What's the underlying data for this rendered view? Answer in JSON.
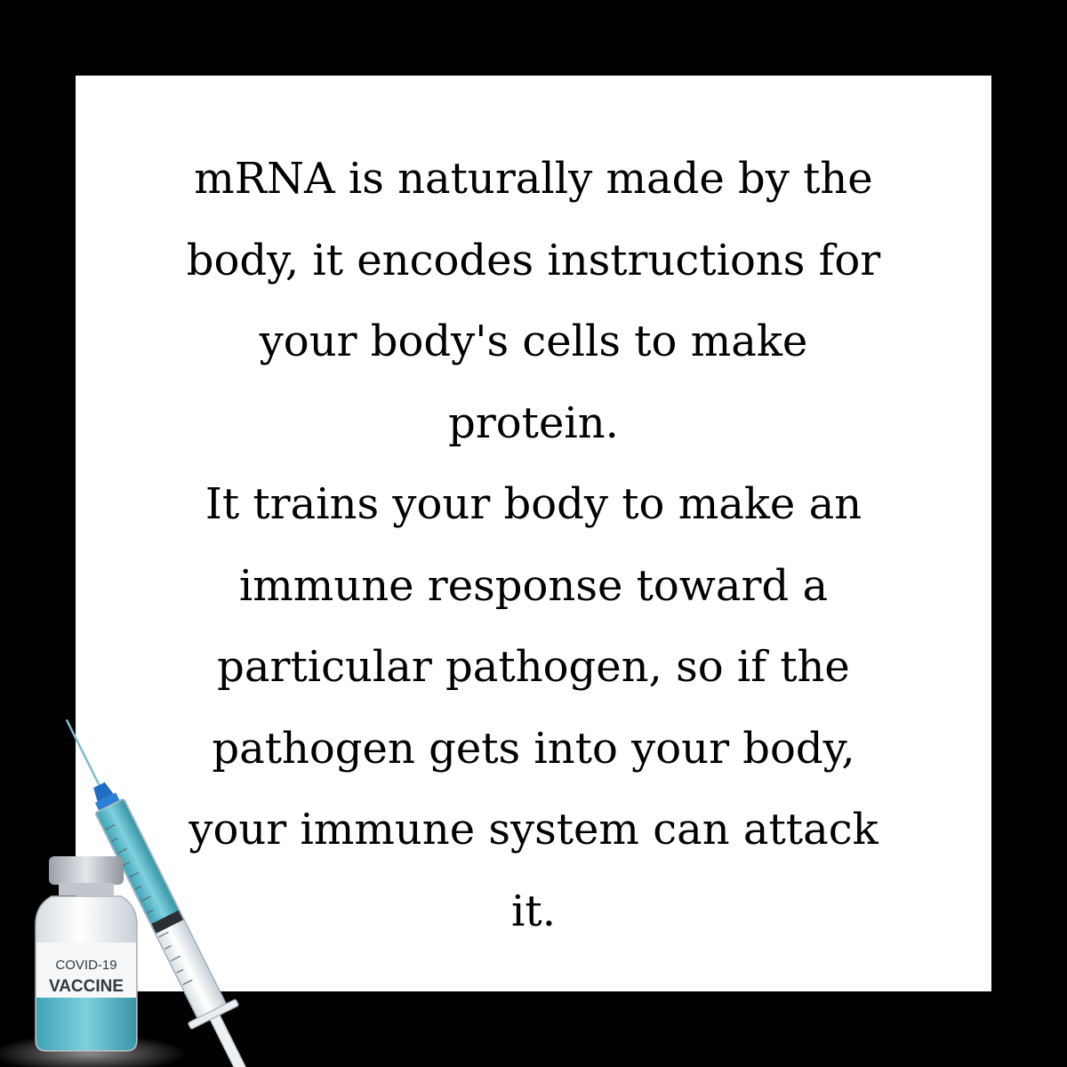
{
  "message": {
    "lines": [
      "mRNA is naturally made by the",
      "body, it encodes instructions for",
      "your body's cells to make",
      "protein.",
      "It trains your body to make an",
      "immune response toward a",
      "particular pathogen, so if the",
      "pathogen gets into your body,",
      "your immune system can attack",
      "it."
    ]
  },
  "vial": {
    "label_top": "COVID-19",
    "label_bottom": "VACCINE",
    "liquid_color": "#4fb7c9",
    "cap_color": "#c9cdd1"
  },
  "syringe": {
    "liquid_color": "#4fb7c9",
    "hub_color": "#1e6fc4"
  },
  "colors": {
    "background": "#000000",
    "card": "#ffffff",
    "text": "#000000"
  }
}
